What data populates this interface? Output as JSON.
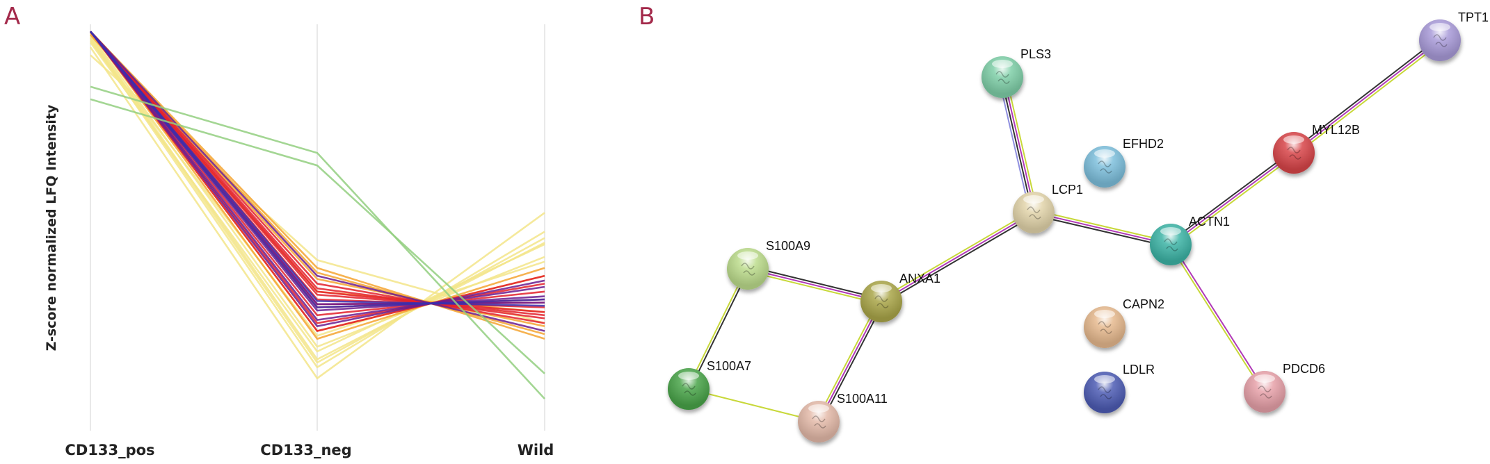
{
  "panels": {
    "a_label": "A",
    "b_label": "B"
  },
  "chart_data": {
    "type": "line",
    "title": "",
    "xlabel": "",
    "ylabel": "Z-score normalized LFQ Intensity",
    "categories": [
      "CD133_pos",
      "CD133_neg",
      "Wild"
    ],
    "ylim": [
      -1.4,
      1.2
    ],
    "grid": "vertical lines at categories",
    "series_groups": [
      {
        "name": "yellow",
        "color": "#f3e58a",
        "series": [
          [
            1.1,
            -0.98,
            -0.12
          ],
          [
            1.12,
            -0.93,
            -0.19
          ],
          [
            1.08,
            -0.88,
            -0.2
          ],
          [
            1.13,
            -0.85,
            -0.28
          ],
          [
            1.05,
            -1.05,
            0.0
          ],
          [
            1.0,
            -0.3,
            -0.7
          ],
          [
            1.09,
            -0.78,
            -0.31
          ],
          [
            1.11,
            -0.95,
            -0.16
          ]
        ]
      },
      {
        "name": "orange",
        "color": "#f5a531",
        "series": [
          [
            1.15,
            -0.35,
            -0.8
          ],
          [
            1.14,
            -0.42,
            -0.72
          ],
          [
            1.15,
            -0.8,
            -0.35
          ],
          [
            1.13,
            -0.5,
            -0.63
          ],
          [
            1.15,
            -0.75,
            -0.4
          ],
          [
            1.15,
            -0.38,
            -0.77
          ]
        ]
      },
      {
        "name": "red",
        "color": "#e3212b",
        "series": [
          [
            1.15,
            -0.45,
            -0.7
          ],
          [
            1.15,
            -0.5,
            -0.65
          ],
          [
            1.15,
            -0.55,
            -0.6
          ],
          [
            1.15,
            -0.6,
            -0.55
          ],
          [
            1.15,
            -0.65,
            -0.5
          ],
          [
            1.15,
            -0.7,
            -0.45
          ],
          [
            1.15,
            -0.75,
            -0.4
          ],
          [
            1.15,
            -0.52,
            -0.63
          ],
          [
            1.15,
            -0.58,
            -0.57
          ],
          [
            1.15,
            -0.48,
            -0.67
          ]
        ]
      },
      {
        "name": "purple",
        "color": "#6a1c8f",
        "series": [
          [
            1.15,
            -0.4,
            -0.75
          ],
          [
            1.15,
            -0.58,
            -0.57
          ],
          [
            1.15,
            -0.62,
            -0.53
          ],
          [
            1.15,
            -0.68,
            -0.47
          ],
          [
            1.15,
            -0.72,
            -0.43
          ]
        ]
      },
      {
        "name": "blue",
        "color": "#3a2fae",
        "series": [
          [
            1.15,
            -0.56,
            -0.59
          ],
          [
            1.15,
            -0.6,
            -0.55
          ]
        ]
      },
      {
        "name": "green",
        "color": "#93cf80",
        "series": [
          [
            0.8,
            0.38,
            -1.18
          ],
          [
            0.72,
            0.3,
            -1.02
          ]
        ]
      }
    ]
  },
  "network": {
    "nodes": [
      {
        "id": "TPT1",
        "color": "#a99bd9"
      },
      {
        "id": "PLS3",
        "color": "#7fcfa8"
      },
      {
        "id": "MYL12B",
        "color": "#d8444a"
      },
      {
        "id": "EFHD2",
        "color": "#7dbfdc"
      },
      {
        "id": "LCP1",
        "color": "#e2d4aa"
      },
      {
        "id": "ACTN1",
        "color": "#3db4a6"
      },
      {
        "id": "S100A9",
        "color": "#bcdc8c"
      },
      {
        "id": "ANXA1",
        "color": "#aaa64a"
      },
      {
        "id": "CAPN2",
        "color": "#e6b98e"
      },
      {
        "id": "LDLR",
        "color": "#4d5cb4"
      },
      {
        "id": "PDCD6",
        "color": "#e7a1a9"
      },
      {
        "id": "S100A7",
        "color": "#4aa448"
      },
      {
        "id": "S100A11",
        "color": "#e4baa9"
      }
    ],
    "edges": [
      {
        "from": "PLS3",
        "to": "LCP1",
        "colors": [
          "#c8d83a",
          "#b03ab8",
          "#333333",
          "#8f8fe0"
        ]
      },
      {
        "from": "LCP1",
        "to": "ANXA1",
        "colors": [
          "#333333",
          "#b03ab8",
          "#c8d83a"
        ]
      },
      {
        "from": "LCP1",
        "to": "ACTN1",
        "colors": [
          "#c8d83a",
          "#b03ab8",
          "#333333"
        ]
      },
      {
        "from": "ACTN1",
        "to": "MYL12B",
        "colors": [
          "#333333",
          "#b03ab8",
          "#c8d83a"
        ]
      },
      {
        "from": "MYL12B",
        "to": "TPT1",
        "colors": [
          "#333333",
          "#b03ab8",
          "#c8d83a"
        ]
      },
      {
        "from": "ACTN1",
        "to": "PDCD6",
        "colors": [
          "#b03ab8",
          "#c8d83a"
        ]
      },
      {
        "from": "S100A9",
        "to": "ANXA1",
        "colors": [
          "#333333",
          "#b03ab8",
          "#c8d83a"
        ]
      },
      {
        "from": "ANXA1",
        "to": "S100A11",
        "colors": [
          "#333333",
          "#b03ab8",
          "#c8d83a"
        ]
      },
      {
        "from": "S100A9",
        "to": "S100A7",
        "colors": [
          "#333333",
          "#c8d83a"
        ]
      },
      {
        "from": "S100A7",
        "to": "S100A11",
        "colors": [
          "#c8d83a"
        ]
      }
    ]
  }
}
